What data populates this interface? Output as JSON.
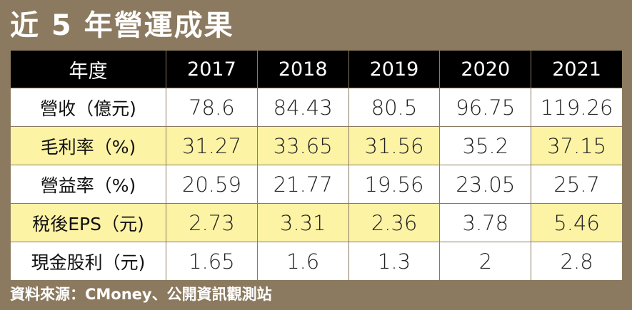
{
  "title": "近 5 年營運成果",
  "table": {
    "header": [
      "年度",
      "2017",
      "2018",
      "2019",
      "2020",
      "2021"
    ],
    "rows": [
      {
        "label": "營收（億元)",
        "values": [
          "78.6",
          "84.43",
          "80.5",
          "96.75",
          "119.26"
        ],
        "style": "white"
      },
      {
        "label": "毛利率（%)",
        "values": [
          "31.27",
          "33.65",
          "31.56",
          "35.2",
          "37.15"
        ],
        "style": "yellow"
      },
      {
        "label": "營益率（%)",
        "values": [
          "20.59",
          "21.77",
          "19.56",
          "23.05",
          "25.7"
        ],
        "style": "white"
      },
      {
        "label": "稅後EPS（元)",
        "values": [
          "2.73",
          "3.31",
          "2.36",
          "3.78",
          "5.46"
        ],
        "style": "yellow"
      },
      {
        "label": "現金股利（元)",
        "values": [
          "1.65",
          "1.6",
          "1.3",
          "2",
          "2.8"
        ],
        "style": "white"
      }
    ]
  },
  "source": "資料來源：CMoney、公開資訊觀測站",
  "colors": {
    "background": "#8b7a5f",
    "header_bg": "#000000",
    "highlight_row": "#fdf3a5"
  }
}
